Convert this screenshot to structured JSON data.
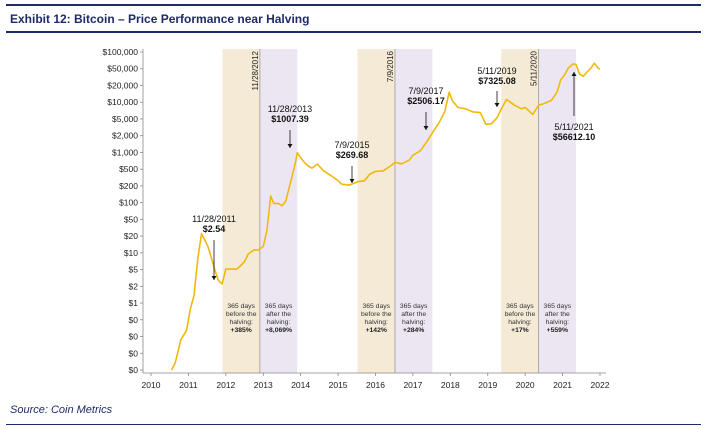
{
  "header": {
    "title": "Exhibit 12:  Bitcoin – Price Performance near Halving"
  },
  "footer": {
    "source": "Source: Coin Metrics"
  },
  "colors": {
    "accent": "#1f2a6b",
    "line": "#f0b90b",
    "before_shade": "#f4ead6",
    "after_shade": "#ece6f2"
  },
  "chart_data": {
    "type": "line",
    "title": "Bitcoin – Price Performance near Halving",
    "xlabel": "",
    "ylabel": "",
    "yscale": "log",
    "y_tick_labels": [
      "$100,000",
      "$50,000",
      "$20,000",
      "$10,000",
      "$5,000",
      "$2,000",
      "$1,000",
      "$500",
      "$200",
      "$100",
      "$50",
      "$20",
      "$10",
      "$5",
      "$2",
      "$1",
      "$0",
      "$0",
      "$0",
      "$0"
    ],
    "x_tick_labels": [
      "2010",
      "2011",
      "2012",
      "2013",
      "2014",
      "2015",
      "2016",
      "2017",
      "2018",
      "2019",
      "2020",
      "2021",
      "2022"
    ],
    "xlim": [
      2010,
      2022
    ],
    "series": [
      {
        "name": "Bitcoin price (USD)",
        "x": [
          2010.55,
          2010.65,
          2010.8,
          2010.95,
          2011.05,
          2011.15,
          2011.25,
          2011.35,
          2011.45,
          2011.52,
          2011.6,
          2011.7,
          2011.8,
          2011.9,
          2012.0,
          2012.15,
          2012.3,
          2012.5,
          2012.6,
          2012.75,
          2012.87,
          2013.0,
          2013.1,
          2013.2,
          2013.28,
          2013.4,
          2013.5,
          2013.6,
          2013.75,
          2013.85,
          2013.91,
          2014.0,
          2014.1,
          2014.2,
          2014.3,
          2014.45,
          2014.6,
          2014.75,
          2014.9,
          2015.0,
          2015.1,
          2015.3,
          2015.52,
          2015.7,
          2015.85,
          2016.0,
          2016.2,
          2016.4,
          2016.52,
          2016.7,
          2016.9,
          2017.0,
          2017.2,
          2017.4,
          2017.52,
          2017.7,
          2017.85,
          2017.97,
          2018.05,
          2018.2,
          2018.4,
          2018.6,
          2018.8,
          2018.95,
          2019.1,
          2019.25,
          2019.36,
          2019.5,
          2019.7,
          2019.9,
          2020.0,
          2020.2,
          2020.36,
          2020.5,
          2020.7,
          2020.85,
          2020.95,
          2021.05,
          2021.15,
          2021.28,
          2021.36,
          2021.45,
          2021.55,
          2021.65,
          2021.75,
          2021.85,
          2021.95,
          2022.0
        ],
        "values": [
          0.05,
          0.07,
          0.2,
          0.3,
          0.8,
          1.5,
          8,
          25,
          18,
          14,
          9,
          5,
          3,
          2.54,
          5,
          5,
          5,
          7,
          10,
          12,
          12,
          14,
          30,
          140,
          100,
          100,
          90,
          110,
          300,
          600,
          1007.39,
          800,
          650,
          550,
          500,
          600,
          450,
          380,
          320,
          280,
          240,
          230,
          269.68,
          280,
          380,
          430,
          440,
          550,
          650,
          610,
          720,
          900,
          1100,
          1800,
          2506.17,
          4000,
          6500,
          16000,
          11000,
          8000,
          7500,
          6500,
          6300,
          3700,
          3800,
          5000,
          7325.08,
          11500,
          9000,
          7500,
          8000,
          5800,
          8800,
          9500,
          11000,
          16000,
          28000,
          35000,
          48000,
          58000,
          56612.1,
          37000,
          33000,
          40000,
          47000,
          60000,
          48000,
          46000
        ]
      }
    ],
    "halvings": [
      "11/28/2012",
      "7/9/2016",
      "5/11/2020"
    ],
    "annotations": [
      {
        "date": "11/28/2011",
        "price": "$2.54"
      },
      {
        "date": "11/28/2013",
        "price": "$1007.39"
      },
      {
        "date": "7/9/2015",
        "price": "$269.68"
      },
      {
        "date": "7/9/2017",
        "price": "$2506.17"
      },
      {
        "date": "5/11/2019",
        "price": "$7325.08"
      },
      {
        "date": "5/11/2021",
        "price": "$56612.10"
      }
    ],
    "windows": [
      {
        "kind": "before",
        "start": 2011.91,
        "end": 2012.91,
        "line1": "365 days",
        "line2": "before the",
        "line3": "halving:",
        "pct": "+385%"
      },
      {
        "kind": "after",
        "start": 2012.91,
        "end": 2013.91,
        "line1": "365 days",
        "line2": "after the",
        "line3": "halving:",
        "pct": "+8,069%"
      },
      {
        "kind": "before",
        "start": 2015.52,
        "end": 2016.52,
        "line1": "365 days",
        "line2": "before the",
        "line3": "halving:",
        "pct": "+142%"
      },
      {
        "kind": "after",
        "start": 2016.52,
        "end": 2017.52,
        "line1": "365 days",
        "line2": "after the",
        "line3": "halving:",
        "pct": "+284%"
      },
      {
        "kind": "before",
        "start": 2019.36,
        "end": 2020.36,
        "line1": "365 days",
        "line2": "before the",
        "line3": "halving:",
        "pct": "+17%"
      },
      {
        "kind": "after",
        "start": 2020.36,
        "end": 2021.36,
        "line1": "365 days",
        "line2": "after the",
        "line3": "halving:",
        "pct": "+559%"
      }
    ]
  }
}
